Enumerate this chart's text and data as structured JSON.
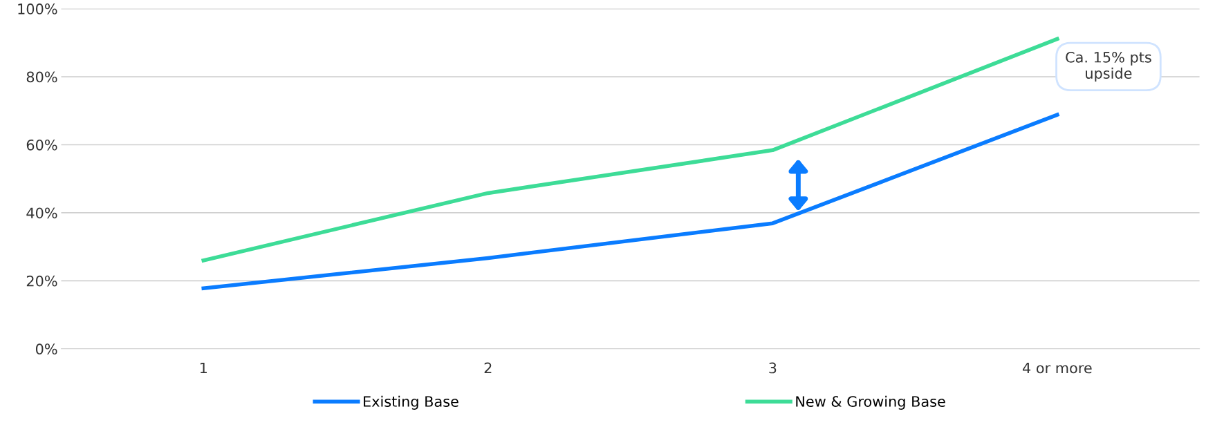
{
  "chart_data": {
    "type": "line",
    "categories": [
      "1",
      "2",
      "3",
      "4 or more"
    ],
    "series": [
      {
        "name": "Existing Base",
        "color": "#0a7cff",
        "values": [
          17.8,
          26.7,
          36.9,
          68.8
        ]
      },
      {
        "name": "New & Growing Base",
        "color": "#3ddc97",
        "values": [
          26.0,
          45.8,
          58.4,
          91.1
        ]
      }
    ],
    "ylim": [
      0,
      100
    ],
    "yticks": [
      {
        "value": 0,
        "label": "0%"
      },
      {
        "value": 20,
        "label": "20%"
      },
      {
        "value": 40,
        "label": "40%"
      },
      {
        "value": 60,
        "label": "60%"
      },
      {
        "value": 80,
        "label": "80%"
      },
      {
        "value": 100,
        "label": "100%"
      }
    ],
    "grid": "y",
    "legend": "bottom",
    "marker": "none",
    "line_style": "solid",
    "annotations": [
      "Ca. 15% pts\nupside"
    ]
  }
}
